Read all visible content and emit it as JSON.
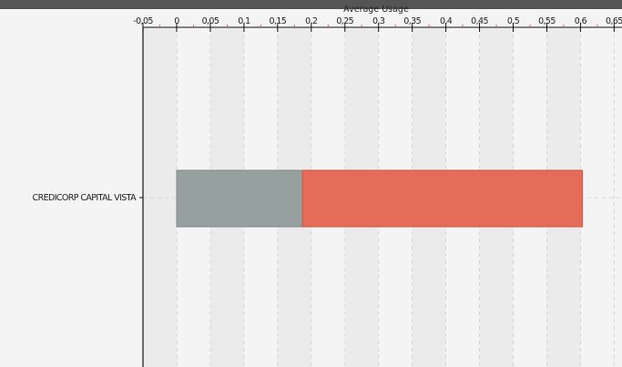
{
  "chart_data": {
    "type": "bar",
    "orientation": "horizontal",
    "stacked": true,
    "title": "",
    "xlabel": "Average Usage",
    "ylabel": "",
    "xlim": [
      -0.05,
      0.65
    ],
    "xticks": [
      "-0,05",
      "0",
      "0,05",
      "0,1",
      "0,15",
      "0,2",
      "0,25",
      "0,3",
      "0,35",
      "0,4",
      "0,45",
      "0,5",
      "0,55",
      "0,6",
      "0,65"
    ],
    "categories": [
      "CREDICORP CAPITAL VISTA"
    ],
    "series": [
      {
        "values": [
          0.187
        ],
        "color": "#95a09f"
      },
      {
        "values": [
          0.416
        ],
        "color": "#e46c58"
      }
    ],
    "grid": true,
    "legend": "none"
  },
  "colors": {
    "background": "#f4f4f4",
    "band": "#ebebeb",
    "topbar": "#555555",
    "axis": "#111111",
    "minor_tick": "#e05050"
  }
}
